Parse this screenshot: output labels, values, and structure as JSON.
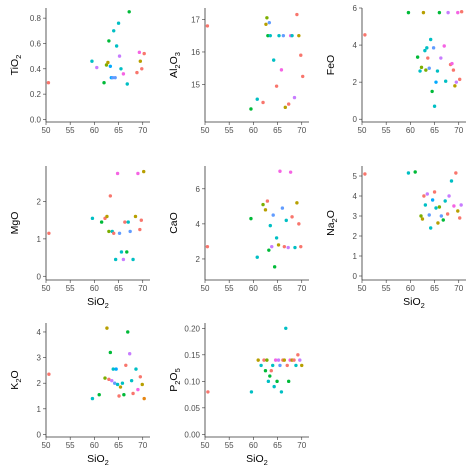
{
  "colors": [
    "#f8766d",
    "#7cae00",
    "#00bfc4",
    "#c77cff",
    "#b79f00",
    "#00ba38",
    "#619cff",
    "#f564e3",
    "#00a9ff",
    "#e68613"
  ],
  "chart_data": [
    {
      "type": "scatter",
      "xlabel": "",
      "xlabel_sub": "",
      "xlabel_tail": "",
      "ylabel": "TiO",
      "ylabel_sub": "2",
      "ylabel_tail": "",
      "xlim": [
        50,
        71.5
      ],
      "ylim": [
        -0.02,
        0.88
      ],
      "xticks": [
        50,
        55,
        60,
        65,
        70
      ],
      "yticks": [
        0.0,
        0.2,
        0.4,
        0.6,
        0.8
      ],
      "x": [
        50.5,
        59.5,
        60.5,
        62.0,
        62.5,
        62.8,
        63.0,
        63.3,
        63.5,
        63.8,
        64.0,
        64.3,
        64.6,
        65.0,
        65.2,
        65.5,
        66.0,
        66.8,
        67.2,
        68.8,
        69.3,
        69.5,
        69.8,
        70.3
      ],
      "y": [
        0.29,
        0.46,
        0.41,
        0.29,
        0.43,
        0.45,
        0.62,
        0.42,
        0.33,
        0.33,
        0.7,
        0.33,
        0.58,
        0.76,
        0.5,
        0.4,
        0.36,
        0.28,
        0.85,
        0.37,
        0.53,
        0.46,
        0.4,
        0.52
      ],
      "c": [
        0,
        2,
        3,
        5,
        1,
        4,
        5,
        8,
        8,
        6,
        2,
        6,
        2,
        2,
        3,
        2,
        7,
        2,
        5,
        0,
        7,
        4,
        0,
        0
      ]
    },
    {
      "type": "scatter",
      "xlabel": "",
      "xlabel_sub": "",
      "xlabel_tail": "",
      "ylabel": "Al",
      "ylabel_sub": "2",
      "ylabel_tail": "O3",
      "xlim": [
        50,
        71.5
      ],
      "ylim": [
        13.85,
        17.35
      ],
      "xticks": [
        50,
        55,
        60,
        65,
        70
      ],
      "yticks": [
        15,
        16,
        17
      ],
      "x": [
        50.5,
        59.5,
        60.8,
        62.0,
        62.6,
        62.8,
        63.0,
        63.3,
        63.5,
        64.2,
        64.8,
        65.3,
        65.8,
        66.2,
        66.6,
        67.3,
        67.7,
        68.0,
        68.5,
        69.0,
        69.4,
        69.8,
        70.2
      ],
      "y": [
        16.8,
        14.25,
        14.55,
        14.45,
        16.85,
        17.05,
        16.5,
        16.9,
        16.5,
        15.75,
        14.95,
        16.5,
        15.45,
        16.5,
        14.3,
        14.4,
        16.5,
        16.5,
        14.6,
        17.15,
        16.5,
        15.9,
        15.25
      ],
      "c": [
        0,
        5,
        2,
        0,
        4,
        1,
        5,
        6,
        2,
        2,
        0,
        2,
        7,
        6,
        4,
        0,
        7,
        2,
        3,
        0,
        4,
        0,
        0
      ]
    },
    {
      "type": "scatter",
      "xlabel": "",
      "xlabel_sub": "",
      "xlabel_tail": "",
      "ylabel": "FeO",
      "ylabel_sub": "",
      "ylabel_tail": "",
      "xlim": [
        50,
        71.5
      ],
      "ylim": [
        -0.15,
        6.0
      ],
      "xticks": [
        50,
        55,
        60,
        65,
        70
      ],
      "yticks": [
        0,
        2,
        4,
        6
      ],
      "x": [
        50.6,
        59.6,
        61.5,
        62.0,
        62.3,
        62.7,
        63.0,
        63.2,
        63.4,
        63.6,
        63.9,
        64.2,
        64.5,
        64.8,
        65.0,
        65.3,
        65.6,
        66.0,
        66.3,
        67.0,
        67.3,
        67.8,
        68.3,
        68.6,
        68.9,
        69.2,
        69.5,
        69.8,
        70.2,
        70.6
      ],
      "y": [
        4.55,
        5.75,
        3.35,
        2.6,
        2.8,
        5.75,
        3.7,
        2.65,
        3.85,
        3.3,
        2.75,
        4.3,
        1.5,
        3.85,
        0.7,
        2.0,
        2.6,
        5.75,
        3.3,
        3.95,
        2.05,
        5.75,
        2.95,
        3.0,
        2.65,
        1.8,
        2.0,
        5.75,
        2.15,
        5.8
      ],
      "c": [
        0,
        5,
        5,
        2,
        1,
        4,
        2,
        1,
        2,
        0,
        6,
        2,
        5,
        6,
        2,
        8,
        2,
        5,
        3,
        7,
        2,
        3,
        0,
        7,
        0,
        4,
        3,
        7,
        0,
        0
      ]
    },
    {
      "type": "scatter",
      "xlabel": "SiO",
      "xlabel_sub": "2",
      "xlabel_tail": "",
      "ylabel": "MgO",
      "ylabel_sub": "",
      "ylabel_tail": "",
      "xlim": [
        50,
        71.5
      ],
      "ylim": [
        -0.1,
        2.95
      ],
      "xticks": [
        50,
        55,
        60,
        65,
        70
      ],
      "yticks": [
        0,
        1,
        2
      ],
      "x": [
        50.6,
        59.6,
        61.5,
        62.2,
        62.6,
        63.0,
        63.3,
        63.7,
        64.0,
        64.4,
        64.8,
        65.2,
        65.6,
        66.0,
        66.3,
        66.7,
        67.0,
        67.4,
        68.0,
        68.5,
        69.0,
        69.4,
        69.7,
        70.2
      ],
      "y": [
        1.15,
        1.55,
        1.45,
        1.55,
        1.6,
        1.2,
        2.15,
        1.2,
        1.15,
        0.45,
        2.75,
        1.15,
        0.65,
        0.45,
        1.45,
        0.65,
        1.45,
        1.2,
        0.45,
        1.6,
        2.75,
        1.25,
        1.5,
        2.8
      ],
      "c": [
        0,
        2,
        5,
        0,
        4,
        1,
        0,
        2,
        0,
        2,
        7,
        6,
        2,
        3,
        0,
        5,
        2,
        6,
        2,
        4,
        7,
        0,
        0,
        4
      ]
    },
    {
      "type": "scatter",
      "xlabel": "",
      "xlabel_sub": "",
      "xlabel_tail": "",
      "ylabel": "CaO",
      "ylabel_sub": "",
      "ylabel_tail": "",
      "xlim": [
        50,
        71.5
      ],
      "ylim": [
        0.8,
        7.3
      ],
      "xticks": [
        50,
        55,
        60,
        65,
        70
      ],
      "yticks": [
        2,
        4,
        6
      ],
      "x": [
        50.5,
        59.5,
        60.8,
        62.0,
        62.5,
        62.9,
        63.2,
        63.5,
        63.8,
        64.1,
        64.4,
        64.8,
        65.2,
        65.5,
        66.0,
        66.4,
        66.8,
        67.2,
        67.7,
        68.0,
        68.6,
        69.0,
        69.4,
        69.8
      ],
      "y": [
        2.7,
        4.3,
        2.1,
        5.1,
        4.8,
        5.3,
        2.5,
        3.9,
        2.7,
        4.5,
        1.55,
        3.2,
        2.8,
        7.0,
        4.9,
        2.7,
        4.2,
        2.65,
        6.95,
        4.4,
        2.65,
        5.2,
        4.0,
        2.7
      ],
      "c": [
        0,
        5,
        2,
        1,
        4,
        0,
        5,
        2,
        3,
        6,
        5,
        2,
        4,
        7,
        6,
        0,
        2,
        3,
        7,
        0,
        2,
        4,
        0,
        0
      ]
    },
    {
      "type": "scatter",
      "xlabel": "SiO",
      "xlabel_sub": "2",
      "xlabel_tail": "",
      "ylabel": "Na",
      "ylabel_sub": "2",
      "ylabel_tail": "O",
      "xlim": [
        50,
        71.5
      ],
      "ylim": [
        -0.2,
        5.5
      ],
      "xticks": [
        50,
        55,
        60,
        65,
        70
      ],
      "yticks": [
        0,
        1,
        2,
        3,
        4,
        5
      ],
      "x": [
        50.6,
        59.6,
        61.0,
        62.2,
        62.5,
        62.8,
        63.1,
        63.5,
        63.9,
        64.2,
        64.6,
        65.0,
        65.3,
        65.7,
        66.0,
        66.4,
        66.8,
        67.2,
        67.7,
        68.0,
        68.5,
        69.0,
        69.4,
        69.8,
        70.2,
        70.5
      ],
      "y": [
        5.1,
        5.15,
        5.2,
        3.0,
        2.85,
        4.0,
        3.55,
        4.1,
        3.05,
        2.4,
        3.8,
        4.2,
        3.4,
        2.65,
        3.45,
        3.0,
        2.8,
        3.75,
        3.1,
        4.0,
        4.75,
        3.5,
        5.15,
        3.25,
        2.9,
        3.55
      ],
      "c": [
        0,
        2,
        5,
        1,
        4,
        0,
        2,
        3,
        6,
        2,
        8,
        0,
        2,
        4,
        1,
        6,
        5,
        2,
        0,
        3,
        2,
        7,
        0,
        4,
        0,
        3
      ]
    },
    {
      "type": "scatter",
      "xlabel": "SiO",
      "xlabel_sub": "2",
      "xlabel_tail": "",
      "ylabel": "K",
      "ylabel_sub": "2",
      "ylabel_tail": "O",
      "xlim": [
        50,
        71.5
      ],
      "ylim": [
        -0.1,
        4.35
      ],
      "xticks": [
        50,
        55,
        60,
        65,
        70
      ],
      "yticks": [
        0,
        1,
        2,
        3,
        4
      ],
      "x": [
        50.6,
        59.6,
        61.0,
        62.2,
        62.6,
        63.0,
        63.3,
        63.6,
        63.9,
        64.2,
        64.5,
        64.8,
        65.1,
        65.4,
        65.8,
        66.1,
        66.5,
        66.9,
        67.3,
        67.7,
        68.0,
        68.6,
        69.0,
        69.5,
        69.9,
        70.3
      ],
      "y": [
        2.35,
        1.4,
        1.55,
        2.2,
        4.15,
        2.15,
        3.2,
        2.1,
        2.55,
        2.0,
        2.55,
        1.95,
        1.5,
        1.85,
        2.0,
        1.55,
        2.7,
        4.0,
        3.15,
        2.1,
        1.6,
        2.55,
        1.75,
        2.25,
        1.95,
        1.4
      ],
      "c": [
        0,
        2,
        5,
        1,
        4,
        0,
        5,
        3,
        2,
        6,
        8,
        2,
        0,
        4,
        2,
        5,
        0,
        5,
        3,
        2,
        0,
        2,
        7,
        0,
        4,
        9
      ]
    },
    {
      "type": "scatter",
      "xlabel": "SiO",
      "xlabel_sub": "2",
      "xlabel_tail": "",
      "ylabel": "P",
      "ylabel_sub": "2",
      "ylabel_tail": "O5",
      "xlim": [
        50,
        71.5
      ],
      "ylim": [
        -0.005,
        0.21
      ],
      "xticks": [
        50,
        55,
        60,
        65,
        70
      ],
      "yticks": [
        0.0,
        0.05,
        0.1,
        0.15,
        0.2
      ],
      "x": [
        50.6,
        59.6,
        61.0,
        61.6,
        62.2,
        62.5,
        62.8,
        63.1,
        63.4,
        63.7,
        64.0,
        64.3,
        64.6,
        64.9,
        65.2,
        65.5,
        65.8,
        66.1,
        66.4,
        66.7,
        67.0,
        67.3,
        67.6,
        68.0,
        68.4,
        68.8,
        69.2,
        69.6,
        70.0
      ],
      "y": [
        0.08,
        0.08,
        0.14,
        0.13,
        0.14,
        0.12,
        0.14,
        0.1,
        0.11,
        0.12,
        0.13,
        0.09,
        0.14,
        0.1,
        0.14,
        0.13,
        0.08,
        0.14,
        0.14,
        0.2,
        0.13,
        0.1,
        0.14,
        0.14,
        0.14,
        0.13,
        0.15,
        0.14,
        0.13
      ],
      "c": [
        0,
        2,
        4,
        2,
        0,
        5,
        1,
        2,
        5,
        0,
        2,
        2,
        7,
        5,
        3,
        6,
        2,
        0,
        4,
        2,
        0,
        5,
        7,
        4,
        0,
        2,
        0,
        3,
        4
      ]
    }
  ]
}
